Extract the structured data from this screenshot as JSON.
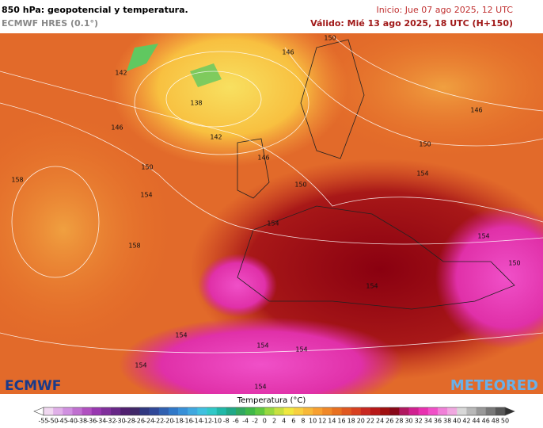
{
  "header": {
    "title": "850 hPa: geopotencial y temperatura.",
    "model": "ECMWF HRES (0.1°)",
    "init": "Inicio: Jue 07 ago 2025, 12 UTC",
    "valid": "Válido: Mié 13 ago 2025, 18 UTC (H+150)"
  },
  "map": {
    "contour_labels": [
      "150",
      "146",
      "142",
      "138",
      "146",
      "142",
      "146",
      "150",
      "146",
      "150",
      "158",
      "154",
      "150",
      "154",
      "154",
      "158",
      "154",
      "150",
      "154",
      "154",
      "154",
      "154",
      "154",
      "154"
    ],
    "logo_left": "ECMWF",
    "logo_right": "METEORED"
  },
  "colorbar": {
    "title": "Temperatura (°C)",
    "labels": [
      "-55",
      "-50",
      "-45",
      "-40",
      "-38",
      "-36",
      "-34",
      "-32",
      "-30",
      "-28",
      "-26",
      "-24",
      "-22",
      "-20",
      "-18",
      "-16",
      "-14",
      "-12",
      "-10",
      "-8",
      "-6",
      "-4",
      "-2",
      "0",
      "2",
      "4",
      "6",
      "8",
      "10",
      "12",
      "14",
      "16",
      "18",
      "20",
      "22",
      "24",
      "26",
      "28",
      "30",
      "32",
      "34",
      "36",
      "38",
      "40",
      "42",
      "44",
      "46",
      "48",
      "50"
    ],
    "colors": [
      "#f0d8f0",
      "#e0b0e8",
      "#d090e0",
      "#c070d0",
      "#b050c0",
      "#9838b0",
      "#80309c",
      "#682888",
      "#502070",
      "#402868",
      "#303880",
      "#304898",
      "#3060b0",
      "#3078c8",
      "#3890d8",
      "#40a8e0",
      "#40c0e0",
      "#30c8c8",
      "#20b8a8",
      "#20a888",
      "#30a860",
      "#40b848",
      "#60c840",
      "#98d840",
      "#c8e040",
      "#f0e840",
      "#f8d040",
      "#f8b838",
      "#f8a030",
      "#f08828",
      "#e87020",
      "#e05820",
      "#d84020",
      "#c82820",
      "#b81818",
      "#a01010",
      "#880818",
      "#b01860",
      "#d02090",
      "#e830b0",
      "#f050c8",
      "#f080d8",
      "#f0a8e0",
      "#d8d8d8",
      "#b8b8b8",
      "#989898",
      "#787878",
      "#585858"
    ]
  }
}
